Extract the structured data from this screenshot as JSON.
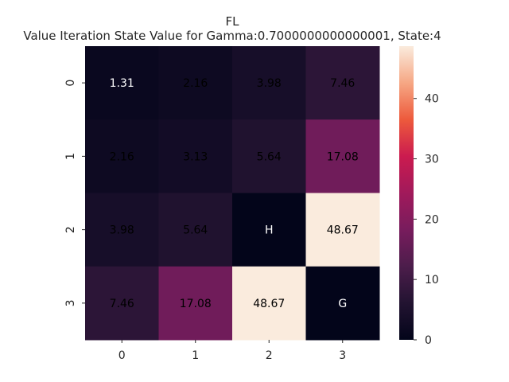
{
  "chart_data": {
    "type": "heatmap",
    "title": "FL",
    "subtitle": "Value Iteration State Value for Gamma:0.7000000000000001, State:4",
    "x_tick_labels": [
      "0",
      "1",
      "2",
      "3"
    ],
    "y_tick_labels": [
      "0",
      "1",
      "2",
      "3"
    ],
    "values": [
      [
        1.31,
        2.16,
        3.98,
        7.46
      ],
      [
        2.16,
        3.13,
        5.64,
        17.08
      ],
      [
        3.98,
        5.64,
        0,
        48.67
      ],
      [
        7.46,
        17.08,
        48.67,
        0
      ]
    ],
    "cell_labels": [
      [
        "1.31",
        "2.16",
        "3.98",
        "7.46"
      ],
      [
        "2.16",
        "3.13",
        "5.64",
        "17.08"
      ],
      [
        "3.98",
        "5.64",
        "H",
        "48.67"
      ],
      [
        "7.46",
        "17.08",
        "48.67",
        "G"
      ]
    ],
    "colorbar": {
      "min": 0,
      "max": 48.67,
      "ticks": [
        0,
        10,
        20,
        30,
        40
      ],
      "tick_labels": [
        "0",
        "10",
        "20",
        "30",
        "40"
      ],
      "colormap": "rocket"
    },
    "grid": false
  }
}
